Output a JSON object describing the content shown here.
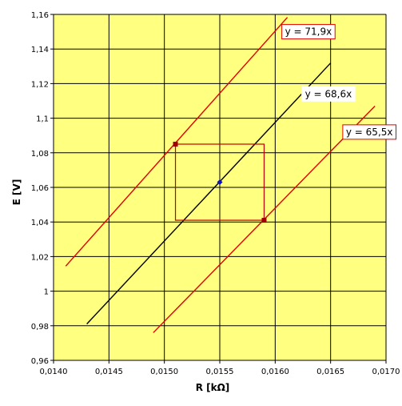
{
  "chart_data": {
    "type": "line",
    "title": "",
    "xlabel": "R  [kΩ]",
    "ylabel": "E  [V]",
    "xlim": [
      0.014,
      0.017
    ],
    "ylim": [
      0.96,
      1.16
    ],
    "x_ticks": [
      {
        "value": 0.014,
        "label": "0,0140"
      },
      {
        "value": 0.0145,
        "label": "0,0145"
      },
      {
        "value": 0.015,
        "label": "0,0150"
      },
      {
        "value": 0.0155,
        "label": "0,0155"
      },
      {
        "value": 0.016,
        "label": "0,0160"
      },
      {
        "value": 0.0165,
        "label": "0,0165"
      },
      {
        "value": 0.017,
        "label": "0,0170"
      }
    ],
    "y_ticks": [
      {
        "value": 0.96,
        "label": "0,96"
      },
      {
        "value": 0.98,
        "label": "0,98"
      },
      {
        "value": 1.0,
        "label": "1"
      },
      {
        "value": 1.02,
        "label": "1,02"
      },
      {
        "value": 1.04,
        "label": "1,04"
      },
      {
        "value": 1.06,
        "label": "1,06"
      },
      {
        "value": 1.08,
        "label": "1,08"
      },
      {
        "value": 1.1,
        "label": "1,1"
      },
      {
        "value": 1.12,
        "label": "1,12"
      },
      {
        "value": 1.14,
        "label": "1,14"
      },
      {
        "value": 1.16,
        "label": "1,16"
      }
    ],
    "grid": true,
    "legend": "none",
    "plot_background": "#ffff80",
    "series": [
      {
        "slope": 71.9,
        "x": [
          0.01411,
          0.01611
        ],
        "y": [
          1.0145,
          1.1583
        ],
        "color": "#e00000"
      },
      {
        "slope": 68.6,
        "x": [
          0.0143,
          0.0165
        ],
        "y": [
          0.981,
          1.1319
        ],
        "color": "#000000"
      },
      {
        "slope": 65.5,
        "x": [
          0.0149,
          0.0169
        ],
        "y": [
          0.976,
          1.107
        ],
        "color": "#e00000"
      }
    ],
    "rectangle": {
      "x": [
        0.0151,
        0.0159
      ],
      "y": [
        1.041,
        1.085
      ],
      "color": "#c00000"
    },
    "points": [
      {
        "x": 0.0151,
        "y": 1.085,
        "color": "#a00000",
        "marker": "square"
      },
      {
        "x": 0.0159,
        "y": 1.041,
        "color": "#a00000",
        "marker": "square"
      },
      {
        "x": 0.0155,
        "y": 1.063,
        "color": "#1010c0",
        "marker": "diamond"
      }
    ],
    "annotations": [
      {
        "text": "y = 71,9x",
        "x": 0.0163,
        "y": 1.15,
        "border": "#e00000"
      },
      {
        "text": "y = 68,6x",
        "x": 0.01648,
        "y": 1.114,
        "border": "#ffffff"
      },
      {
        "text": "y = 65,5x",
        "x": 0.01685,
        "y": 1.092,
        "border": "#e00000"
      }
    ]
  }
}
